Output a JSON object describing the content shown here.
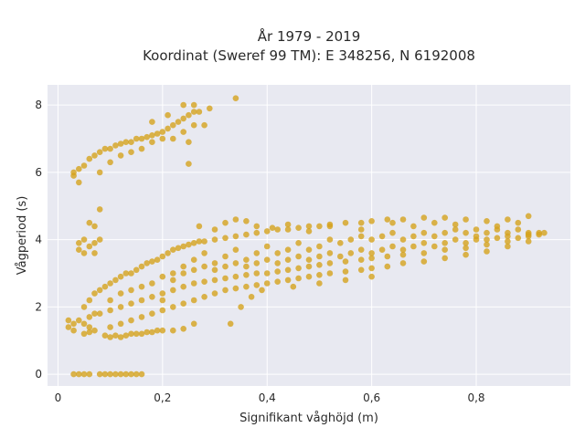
{
  "chart_data": {
    "type": "scatter",
    "title": "År 1979 - 2019",
    "subtitle": "Koordinat (Sweref 99 TM): E 348256, N 6192008",
    "xlabel": "Signifikant våghöjd (m)",
    "ylabel": "Vågperiod (s)",
    "xlim": [
      -0.02,
      0.98
    ],
    "ylim": [
      -0.35,
      8.6
    ],
    "xticks": [
      0,
      0.2,
      0.4,
      0.6,
      0.8
    ],
    "xtick_labels": [
      "0",
      "0,2",
      "0,4",
      "0,6",
      "0,8"
    ],
    "yticks": [
      0,
      2,
      4,
      6,
      8
    ],
    "ytick_labels": [
      "0",
      "2",
      "4",
      "6",
      "8"
    ],
    "grid": true,
    "legend": "none",
    "colors": {
      "marker": "#D4A21E",
      "plot_bg": "#E8E9F1",
      "grid": "#ffffff"
    },
    "points": [
      [
        0.03,
        0.0
      ],
      [
        0.04,
        0.0
      ],
      [
        0.05,
        0.0
      ],
      [
        0.06,
        0.0
      ],
      [
        0.08,
        0.0
      ],
      [
        0.09,
        0.0
      ],
      [
        0.1,
        0.0
      ],
      [
        0.11,
        0.0
      ],
      [
        0.12,
        0.0
      ],
      [
        0.13,
        0.0
      ],
      [
        0.14,
        0.0
      ],
      [
        0.15,
        0.0
      ],
      [
        0.16,
        0.0
      ],
      [
        0.02,
        1.4
      ],
      [
        0.02,
        1.6
      ],
      [
        0.03,
        1.3
      ],
      [
        0.03,
        1.5
      ],
      [
        0.04,
        1.6
      ],
      [
        0.05,
        1.5
      ],
      [
        0.06,
        1.7
      ],
      [
        0.06,
        1.4
      ],
      [
        0.07,
        1.8
      ],
      [
        0.07,
        1.3
      ],
      [
        0.05,
        1.2
      ],
      [
        0.06,
        1.25
      ],
      [
        0.09,
        1.15
      ],
      [
        0.1,
        1.1
      ],
      [
        0.11,
        1.15
      ],
      [
        0.12,
        1.1
      ],
      [
        0.13,
        1.15
      ],
      [
        0.14,
        1.2
      ],
      [
        0.15,
        1.2
      ],
      [
        0.16,
        1.2
      ],
      [
        0.17,
        1.25
      ],
      [
        0.18,
        1.25
      ],
      [
        0.19,
        1.3
      ],
      [
        0.2,
        1.3
      ],
      [
        0.22,
        1.3
      ],
      [
        0.24,
        1.35
      ],
      [
        0.26,
        1.5
      ],
      [
        0.04,
        3.7
      ],
      [
        0.04,
        3.9
      ],
      [
        0.05,
        3.6
      ],
      [
        0.05,
        4.0
      ],
      [
        0.06,
        3.8
      ],
      [
        0.07,
        3.9
      ],
      [
        0.06,
        4.5
      ],
      [
        0.07,
        4.4
      ],
      [
        0.07,
        3.6
      ],
      [
        0.08,
        4.0
      ],
      [
        0.08,
        4.9
      ],
      [
        0.03,
        5.9
      ],
      [
        0.03,
        6.0
      ],
      [
        0.04,
        5.7
      ],
      [
        0.04,
        6.1
      ],
      [
        0.05,
        6.2
      ],
      [
        0.06,
        6.4
      ],
      [
        0.07,
        6.5
      ],
      [
        0.08,
        6.6
      ],
      [
        0.09,
        6.7
      ],
      [
        0.1,
        6.7
      ],
      [
        0.11,
        6.8
      ],
      [
        0.12,
        6.85
      ],
      [
        0.13,
        6.9
      ],
      [
        0.14,
        6.9
      ],
      [
        0.15,
        7.0
      ],
      [
        0.16,
        7.0
      ],
      [
        0.17,
        7.05
      ],
      [
        0.18,
        7.1
      ],
      [
        0.19,
        7.15
      ],
      [
        0.2,
        7.2
      ],
      [
        0.21,
        7.3
      ],
      [
        0.22,
        7.4
      ],
      [
        0.23,
        7.5
      ],
      [
        0.24,
        7.6
      ],
      [
        0.25,
        7.7
      ],
      [
        0.26,
        7.8
      ],
      [
        0.27,
        7.8
      ],
      [
        0.29,
        7.9
      ],
      [
        0.34,
        8.2
      ],
      [
        0.08,
        6.0
      ],
      [
        0.1,
        6.3
      ],
      [
        0.12,
        6.5
      ],
      [
        0.14,
        6.6
      ],
      [
        0.16,
        6.7
      ],
      [
        0.18,
        6.9
      ],
      [
        0.2,
        7.0
      ],
      [
        0.22,
        7.0
      ],
      [
        0.24,
        7.2
      ],
      [
        0.26,
        7.4
      ],
      [
        0.25,
        6.9
      ],
      [
        0.25,
        6.25
      ],
      [
        0.18,
        7.5
      ],
      [
        0.21,
        7.7
      ],
      [
        0.24,
        8.0
      ],
      [
        0.26,
        8.0
      ],
      [
        0.28,
        7.4
      ],
      [
        0.05,
        2.0
      ],
      [
        0.06,
        2.2
      ],
      [
        0.07,
        2.4
      ],
      [
        0.08,
        2.5
      ],
      [
        0.09,
        2.6
      ],
      [
        0.1,
        2.7
      ],
      [
        0.11,
        2.8
      ],
      [
        0.12,
        2.9
      ],
      [
        0.13,
        3.0
      ],
      [
        0.14,
        3.0
      ],
      [
        0.15,
        3.1
      ],
      [
        0.16,
        3.2
      ],
      [
        0.17,
        3.3
      ],
      [
        0.18,
        3.35
      ],
      [
        0.19,
        3.4
      ],
      [
        0.2,
        3.5
      ],
      [
        0.21,
        3.6
      ],
      [
        0.22,
        3.7
      ],
      [
        0.23,
        3.75
      ],
      [
        0.24,
        3.8
      ],
      [
        0.25,
        3.85
      ],
      [
        0.26,
        3.9
      ],
      [
        0.27,
        3.95
      ],
      [
        0.28,
        3.95
      ],
      [
        0.3,
        4.0
      ],
      [
        0.32,
        4.05
      ],
      [
        0.34,
        4.1
      ],
      [
        0.36,
        4.15
      ],
      [
        0.38,
        4.2
      ],
      [
        0.4,
        4.25
      ],
      [
        0.42,
        4.3
      ],
      [
        0.44,
        4.3
      ],
      [
        0.46,
        4.35
      ],
      [
        0.48,
        4.4
      ],
      [
        0.5,
        4.4
      ],
      [
        0.52,
        4.45
      ],
      [
        0.55,
        4.5
      ],
      [
        0.58,
        4.5
      ],
      [
        0.6,
        4.55
      ],
      [
        0.63,
        4.6
      ],
      [
        0.66,
        4.6
      ],
      [
        0.7,
        4.65
      ],
      [
        0.74,
        4.65
      ],
      [
        0.78,
        4.6
      ],
      [
        0.82,
        4.55
      ],
      [
        0.86,
        4.6
      ],
      [
        0.9,
        4.7
      ],
      [
        0.08,
        1.8
      ],
      [
        0.1,
        1.9
      ],
      [
        0.12,
        2.0
      ],
      [
        0.14,
        2.1
      ],
      [
        0.16,
        2.2
      ],
      [
        0.18,
        2.3
      ],
      [
        0.2,
        2.4
      ],
      [
        0.22,
        2.5
      ],
      [
        0.24,
        2.6
      ],
      [
        0.26,
        2.7
      ],
      [
        0.28,
        2.75
      ],
      [
        0.3,
        2.8
      ],
      [
        0.32,
        2.85
      ],
      [
        0.34,
        2.9
      ],
      [
        0.36,
        2.95
      ],
      [
        0.38,
        3.0
      ],
      [
        0.4,
        3.0
      ],
      [
        0.42,
        3.05
      ],
      [
        0.44,
        3.1
      ],
      [
        0.46,
        3.15
      ],
      [
        0.48,
        3.2
      ],
      [
        0.5,
        3.25
      ],
      [
        0.52,
        3.3
      ],
      [
        0.55,
        3.35
      ],
      [
        0.58,
        3.4
      ],
      [
        0.6,
        3.45
      ],
      [
        0.63,
        3.5
      ],
      [
        0.66,
        3.55
      ],
      [
        0.7,
        3.6
      ],
      [
        0.74,
        3.7
      ],
      [
        0.78,
        3.75
      ],
      [
        0.82,
        3.85
      ],
      [
        0.86,
        3.95
      ],
      [
        0.9,
        4.1
      ],
      [
        0.92,
        4.15
      ],
      [
        0.1,
        1.4
      ],
      [
        0.12,
        1.5
      ],
      [
        0.14,
        1.6
      ],
      [
        0.16,
        1.7
      ],
      [
        0.18,
        1.8
      ],
      [
        0.2,
        1.9
      ],
      [
        0.22,
        2.0
      ],
      [
        0.24,
        2.1
      ],
      [
        0.26,
        2.2
      ],
      [
        0.28,
        2.3
      ],
      [
        0.3,
        2.4
      ],
      [
        0.32,
        2.5
      ],
      [
        0.34,
        2.55
      ],
      [
        0.36,
        2.6
      ],
      [
        0.38,
        2.65
      ],
      [
        0.4,
        2.7
      ],
      [
        0.42,
        2.75
      ],
      [
        0.44,
        2.8
      ],
      [
        0.46,
        2.85
      ],
      [
        0.48,
        2.9
      ],
      [
        0.5,
        2.95
      ],
      [
        0.52,
        3.0
      ],
      [
        0.55,
        3.05
      ],
      [
        0.58,
        3.1
      ],
      [
        0.6,
        3.15
      ],
      [
        0.63,
        3.2
      ],
      [
        0.66,
        3.3
      ],
      [
        0.7,
        3.35
      ],
      [
        0.74,
        3.45
      ],
      [
        0.78,
        3.55
      ],
      [
        0.82,
        3.65
      ],
      [
        0.86,
        3.8
      ],
      [
        0.9,
        3.95
      ],
      [
        0.33,
        1.5
      ],
      [
        0.35,
        2.0
      ],
      [
        0.37,
        2.3
      ],
      [
        0.39,
        2.5
      ],
      [
        0.45,
        2.6
      ],
      [
        0.5,
        2.7
      ],
      [
        0.55,
        2.8
      ],
      [
        0.6,
        2.9
      ],
      [
        0.27,
        4.4
      ],
      [
        0.3,
        4.3
      ],
      [
        0.32,
        4.5
      ],
      [
        0.34,
        4.6
      ],
      [
        0.36,
        4.55
      ],
      [
        0.38,
        4.4
      ],
      [
        0.41,
        4.35
      ],
      [
        0.44,
        4.45
      ],
      [
        0.48,
        4.25
      ],
      [
        0.52,
        4.4
      ],
      [
        0.58,
        4.3
      ],
      [
        0.64,
        4.5
      ],
      [
        0.68,
        4.4
      ],
      [
        0.72,
        4.5
      ],
      [
        0.76,
        4.45
      ],
      [
        0.8,
        4.3
      ],
      [
        0.84,
        4.4
      ],
      [
        0.88,
        4.5
      ],
      [
        0.93,
        4.2
      ],
      [
        0.2,
        2.2
      ],
      [
        0.22,
        2.8
      ],
      [
        0.24,
        3.2
      ],
      [
        0.26,
        3.4
      ],
      [
        0.28,
        3.6
      ],
      [
        0.3,
        3.3
      ],
      [
        0.32,
        3.5
      ],
      [
        0.34,
        3.7
      ],
      [
        0.36,
        3.4
      ],
      [
        0.38,
        3.6
      ],
      [
        0.4,
        3.8
      ],
      [
        0.42,
        3.6
      ],
      [
        0.44,
        3.7
      ],
      [
        0.46,
        3.9
      ],
      [
        0.48,
        3.7
      ],
      [
        0.5,
        3.8
      ],
      [
        0.52,
        4.0
      ],
      [
        0.54,
        3.9
      ],
      [
        0.56,
        4.0
      ],
      [
        0.58,
        4.1
      ],
      [
        0.6,
        4.0
      ],
      [
        0.62,
        4.1
      ],
      [
        0.64,
        4.2
      ],
      [
        0.66,
        4.0
      ],
      [
        0.68,
        4.1
      ],
      [
        0.7,
        4.2
      ],
      [
        0.72,
        4.1
      ],
      [
        0.74,
        4.2
      ],
      [
        0.76,
        4.3
      ],
      [
        0.78,
        4.2
      ],
      [
        0.8,
        4.1
      ],
      [
        0.82,
        4.2
      ],
      [
        0.84,
        4.3
      ],
      [
        0.86,
        4.2
      ],
      [
        0.88,
        4.3
      ],
      [
        0.9,
        4.2
      ],
      [
        0.92,
        4.2
      ],
      [
        0.1,
        2.2
      ],
      [
        0.12,
        2.4
      ],
      [
        0.14,
        2.5
      ],
      [
        0.16,
        2.6
      ],
      [
        0.18,
        2.7
      ],
      [
        0.2,
        2.9
      ],
      [
        0.22,
        3.0
      ],
      [
        0.24,
        3.0
      ],
      [
        0.26,
        3.1
      ],
      [
        0.28,
        3.2
      ],
      [
        0.3,
        3.1
      ],
      [
        0.32,
        3.2
      ],
      [
        0.34,
        3.3
      ],
      [
        0.36,
        3.2
      ],
      [
        0.38,
        3.3
      ],
      [
        0.4,
        3.4
      ],
      [
        0.42,
        3.3
      ],
      [
        0.44,
        3.4
      ],
      [
        0.46,
        3.5
      ],
      [
        0.48,
        3.4
      ],
      [
        0.5,
        3.5
      ],
      [
        0.52,
        3.6
      ],
      [
        0.54,
        3.5
      ],
      [
        0.56,
        3.6
      ],
      [
        0.58,
        3.7
      ],
      [
        0.6,
        3.6
      ],
      [
        0.62,
        3.7
      ],
      [
        0.64,
        3.8
      ],
      [
        0.66,
        3.7
      ],
      [
        0.68,
        3.8
      ],
      [
        0.7,
        3.9
      ],
      [
        0.72,
        3.8
      ],
      [
        0.74,
        3.9
      ],
      [
        0.76,
        4.0
      ],
      [
        0.78,
        3.9
      ],
      [
        0.8,
        4.0
      ],
      [
        0.82,
        4.0
      ],
      [
        0.84,
        4.05
      ],
      [
        0.86,
        4.1
      ],
      [
        0.88,
        4.05
      ],
      [
        0.9,
        4.15
      ]
    ]
  }
}
